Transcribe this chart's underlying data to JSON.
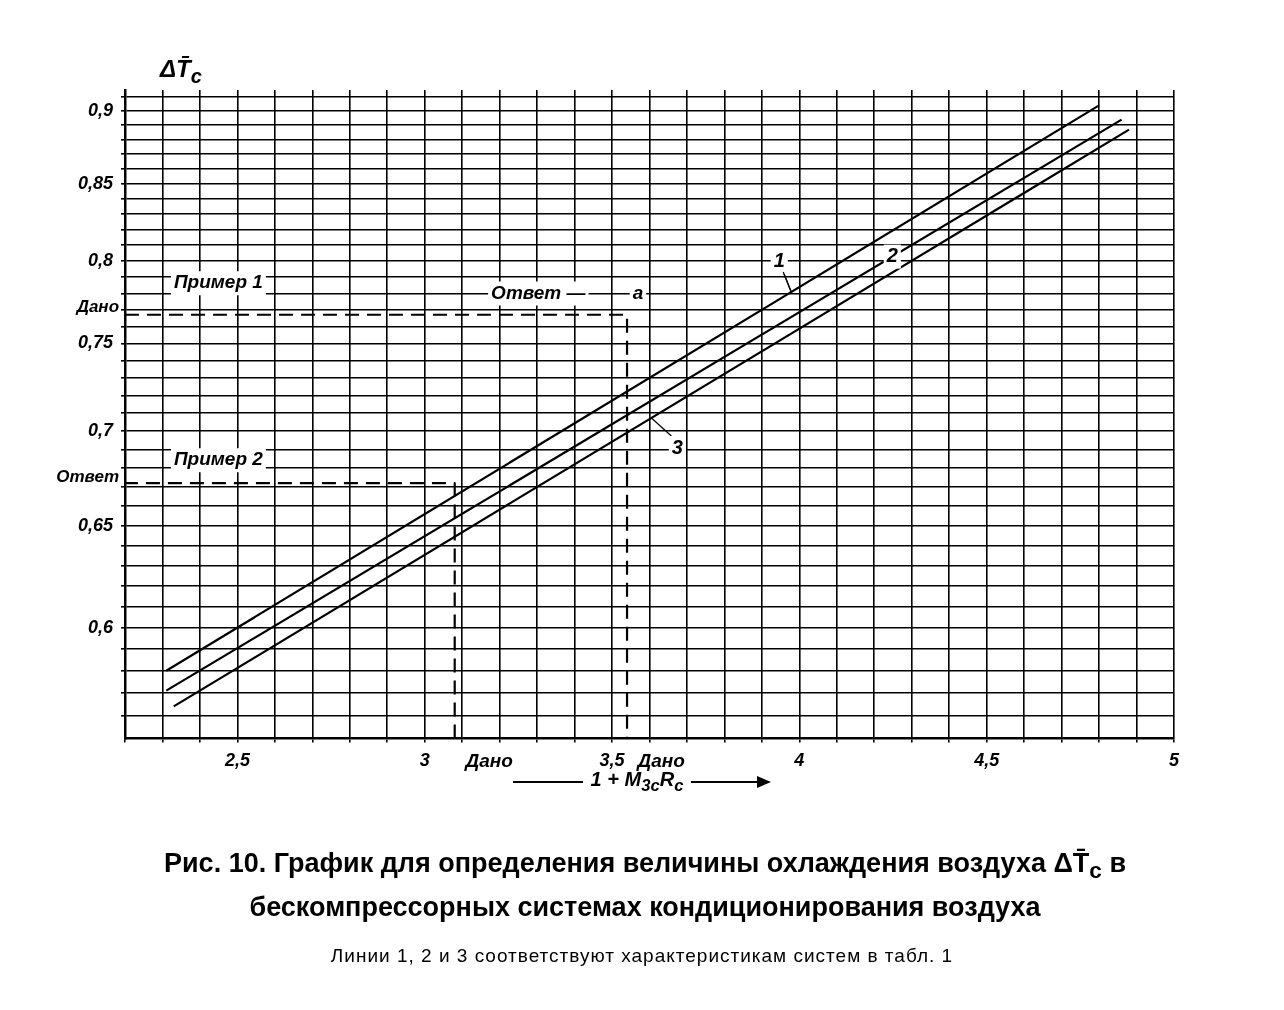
{
  "chart_data": {
    "type": "line",
    "title": "Рис. 10. График для определения величины охлаждения воздуха ΔT̄$_{c}$ в бескомпрессорных системах кондиционирования воздуха",
    "subtitle": "Линии 1, 2 и 3 соответствуют характеристикам систем в табл. 1",
    "xlabel": "1 + M$_{3c}$R$_{c}$",
    "ylabel": "ΔT̄$_{c}$",
    "series": [
      {
        "name": "1",
        "color": "#000000",
        "x": [
          2.31,
          4.8
        ],
        "values": [
          0.58,
          0.904
        ]
      },
      {
        "name": "2",
        "color": "#000000",
        "x": [
          2.31,
          4.86
        ],
        "values": [
          0.571,
          0.894
        ]
      },
      {
        "name": "3",
        "color": "#000000",
        "x": [
          2.33,
          4.88
        ],
        "values": [
          0.564,
          0.887
        ]
      },
      {
        "color": "#000000",
        "line_style": "dashed",
        "x": [
          2.2,
          3.54,
          3.54
        ],
        "values": [
          0.767,
          0.767,
          0.55
        ]
      },
      {
        "color": "#000000",
        "line_style": "dashed",
        "x": [
          3.08,
          3.08,
          2.2
        ],
        "values": [
          0.55,
          0.672,
          0.672
        ]
      }
    ],
    "xlim": [
      2.2,
      5.0
    ],
    "ylim": [
      0.55,
      0.915
    ],
    "log": "y",
    "xticks": [
      {
        "value": 2.2,
        "label": null
      },
      {
        "value": 2.3,
        "label": null
      },
      {
        "value": 2.4,
        "label": null
      },
      {
        "value": 2.5,
        "label": "2,5"
      },
      {
        "value": 2.6,
        "label": null
      },
      {
        "value": 2.7,
        "label": null
      },
      {
        "value": 2.8,
        "label": null
      },
      {
        "value": 2.9,
        "label": null
      },
      3,
      {
        "value": 3.1,
        "label": null
      },
      {
        "value": 3.2,
        "label": null
      },
      {
        "value": 3.3,
        "label": null
      },
      {
        "value": 3.4,
        "label": null
      },
      {
        "value": 3.5,
        "label": "3,5"
      },
      {
        "value": 3.6,
        "label": null
      },
      {
        "value": 3.7,
        "label": null
      },
      {
        "value": 3.8,
        "label": null
      },
      {
        "value": 3.9,
        "label": null
      },
      4,
      {
        "value": 4.1,
        "label": null
      },
      {
        "value": 4.2,
        "label": null
      },
      {
        "value": 4.3,
        "label": null
      },
      {
        "value": 4.4,
        "label": null
      },
      {
        "value": 4.5,
        "label": "4,5"
      },
      {
        "value": 4.6,
        "label": null
      },
      {
        "value": 4.7,
        "label": null
      },
      {
        "value": 4.8,
        "label": null
      },
      {
        "value": 4.9,
        "label": null
      },
      5
    ],
    "yticks": [
      {
        "value": 0.56,
        "label": null
      },
      {
        "value": 0.57,
        "label": null
      },
      {
        "value": 0.58,
        "label": null
      },
      {
        "value": 0.59,
        "label": null
      },
      {
        "value": 0.6,
        "label": "0,6"
      },
      {
        "value": 0.61,
        "label": null
      },
      {
        "value": 0.62,
        "label": null
      },
      {
        "value": 0.63,
        "label": null
      },
      {
        "value": 0.64,
        "label": null
      },
      {
        "value": 0.65,
        "label": "0,65"
      },
      {
        "value": 0.66,
        "label": null
      },
      {
        "value": 0.67,
        "label": null
      },
      {
        "value": 0.68,
        "label": null
      },
      {
        "value": 0.69,
        "label": null
      },
      {
        "value": 0.7,
        "label": "0,7"
      },
      {
        "value": 0.71,
        "label": null
      },
      {
        "value": 0.72,
        "label": null
      },
      {
        "value": 0.73,
        "label": null
      },
      {
        "value": 0.74,
        "label": null
      },
      {
        "value": 0.75,
        "label": "0,75"
      },
      {
        "value": 0.76,
        "label": null
      },
      {
        "value": 0.77,
        "label": null
      },
      {
        "value": 0.78,
        "label": null
      },
      {
        "value": 0.79,
        "label": null
      },
      {
        "value": 0.8,
        "label": "0,8"
      },
      {
        "value": 0.81,
        "label": null
      },
      {
        "value": 0.82,
        "label": null
      },
      {
        "value": 0.83,
        "label": null
      },
      {
        "value": 0.84,
        "label": null
      },
      {
        "value": 0.85,
        "label": "0,85"
      },
      {
        "value": 0.86,
        "label": null
      },
      {
        "value": 0.87,
        "label": null
      },
      {
        "value": 0.88,
        "label": null
      },
      {
        "value": 0.89,
        "label": null
      },
      {
        "value": 0.9,
        "label": "0,9"
      },
      {
        "value": 0.91,
        "label": null
      }
    ],
    "grid": true,
    "marker": "none",
    "line_style": "solid",
    "annotations": [
      "Пример 1",
      "Пример 2",
      "Ответ —",
      "a",
      "Дано",
      "Ответ",
      "Дано",
      "Дано"
    ]
  }
}
